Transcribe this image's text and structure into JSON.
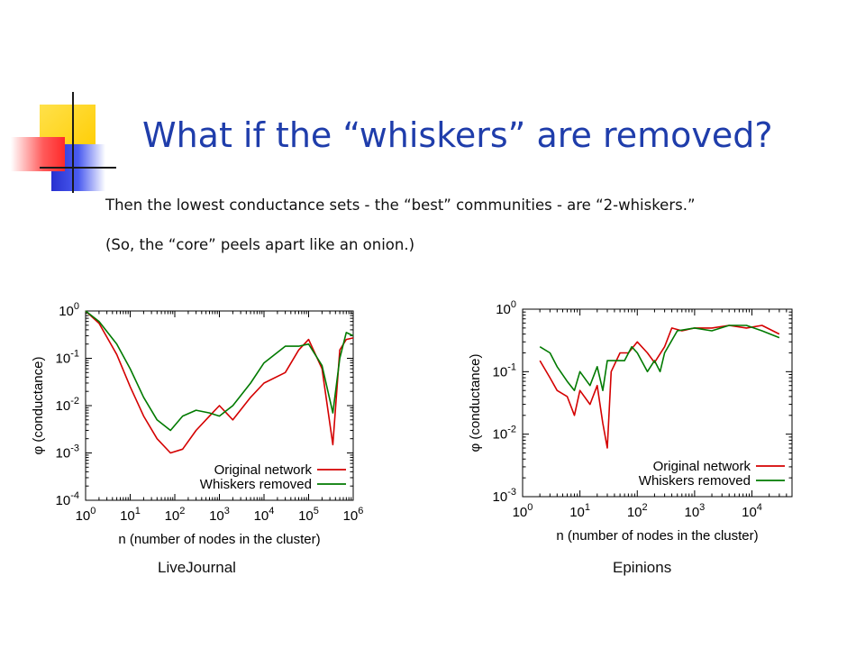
{
  "slide": {
    "title": "What if the “whiskers” are removed?",
    "bullets": [
      "Then the lowest conductance sets - the “best” communities - are “2-whiskers.”",
      "(So, the “core” peels apart like an onion.)"
    ],
    "captions": [
      "LiveJournal",
      "Epinions"
    ]
  },
  "colors": {
    "title": "#1f3dab",
    "original": "#d40000",
    "whiskers": "#007a00",
    "deco_yellow": "#ffd21a",
    "deco_red": "#ff3b3b",
    "deco_blue": "#2b39d8"
  },
  "chart_data": [
    {
      "type": "line",
      "xlabel": "n (number of nodes in the cluster)",
      "ylabel": "φ (conductance)",
      "xscale": "log",
      "yscale": "log",
      "xlim": [
        1,
        1000000
      ],
      "ylim": [
        0.0001,
        1
      ],
      "xticks": [
        "10^0",
        "10^1",
        "10^2",
        "10^3",
        "10^4",
        "10^5",
        "10^6"
      ],
      "yticks": [
        "10^0",
        "10^-1",
        "10^-2",
        "10^-3",
        "10^-4"
      ],
      "legend_position": "bottom-right",
      "series": [
        {
          "name": "Original network",
          "x": [
            1,
            2,
            5,
            10,
            20,
            40,
            80,
            150,
            300,
            600,
            1000,
            2000,
            5000,
            10000,
            30000,
            60000,
            100000,
            200000,
            350000,
            500000,
            700000,
            1000000
          ],
          "y": [
            1,
            0.55,
            0.12,
            0.025,
            0.006,
            0.002,
            0.001,
            0.0012,
            0.003,
            0.006,
            0.01,
            0.005,
            0.015,
            0.03,
            0.05,
            0.15,
            0.25,
            0.06,
            0.0015,
            0.15,
            0.25,
            0.27
          ]
        },
        {
          "name": "Whiskers removed",
          "x": [
            1,
            2,
            5,
            10,
            20,
            40,
            80,
            150,
            300,
            600,
            1000,
            2000,
            5000,
            10000,
            30000,
            60000,
            100000,
            200000,
            350000,
            500000,
            700000,
            1000000
          ],
          "y": [
            1,
            0.6,
            0.2,
            0.06,
            0.015,
            0.005,
            0.003,
            0.006,
            0.008,
            0.007,
            0.006,
            0.01,
            0.03,
            0.08,
            0.18,
            0.18,
            0.2,
            0.07,
            0.007,
            0.1,
            0.35,
            0.3
          ]
        }
      ]
    },
    {
      "type": "line",
      "xlabel": "n (number of nodes in the cluster)",
      "ylabel": "φ (conductance)",
      "xscale": "log",
      "yscale": "log",
      "xlim": [
        1,
        50000
      ],
      "ylim": [
        0.001,
        1
      ],
      "xticks": [
        "10^0",
        "10^1",
        "10^2",
        "10^3",
        "10^4"
      ],
      "yticks": [
        "10^0",
        "10^-1",
        "10^-2",
        "10^-3"
      ],
      "legend_position": "bottom-right",
      "series": [
        {
          "name": "Original network",
          "x": [
            2,
            3,
            4,
            6,
            8,
            10,
            15,
            20,
            25,
            30,
            35,
            50,
            70,
            100,
            150,
            200,
            300,
            400,
            600,
            1000,
            2000,
            4000,
            8000,
            15000,
            30000
          ],
          "y": [
            0.15,
            0.08,
            0.05,
            0.04,
            0.02,
            0.05,
            0.03,
            0.06,
            0.015,
            0.006,
            0.1,
            0.2,
            0.2,
            0.3,
            0.2,
            0.14,
            0.25,
            0.5,
            0.45,
            0.5,
            0.5,
            0.55,
            0.5,
            0.55,
            0.4
          ]
        },
        {
          "name": "Whiskers removed",
          "x": [
            2,
            3,
            4,
            6,
            8,
            10,
            15,
            20,
            25,
            30,
            40,
            60,
            80,
            100,
            150,
            200,
            250,
            300,
            500,
            1000,
            2000,
            4000,
            8000,
            15000,
            30000
          ],
          "y": [
            0.25,
            0.2,
            0.12,
            0.07,
            0.05,
            0.1,
            0.06,
            0.12,
            0.05,
            0.15,
            0.15,
            0.15,
            0.25,
            0.2,
            0.1,
            0.15,
            0.1,
            0.2,
            0.45,
            0.5,
            0.45,
            0.55,
            0.55,
            0.45,
            0.35
          ]
        }
      ]
    }
  ]
}
